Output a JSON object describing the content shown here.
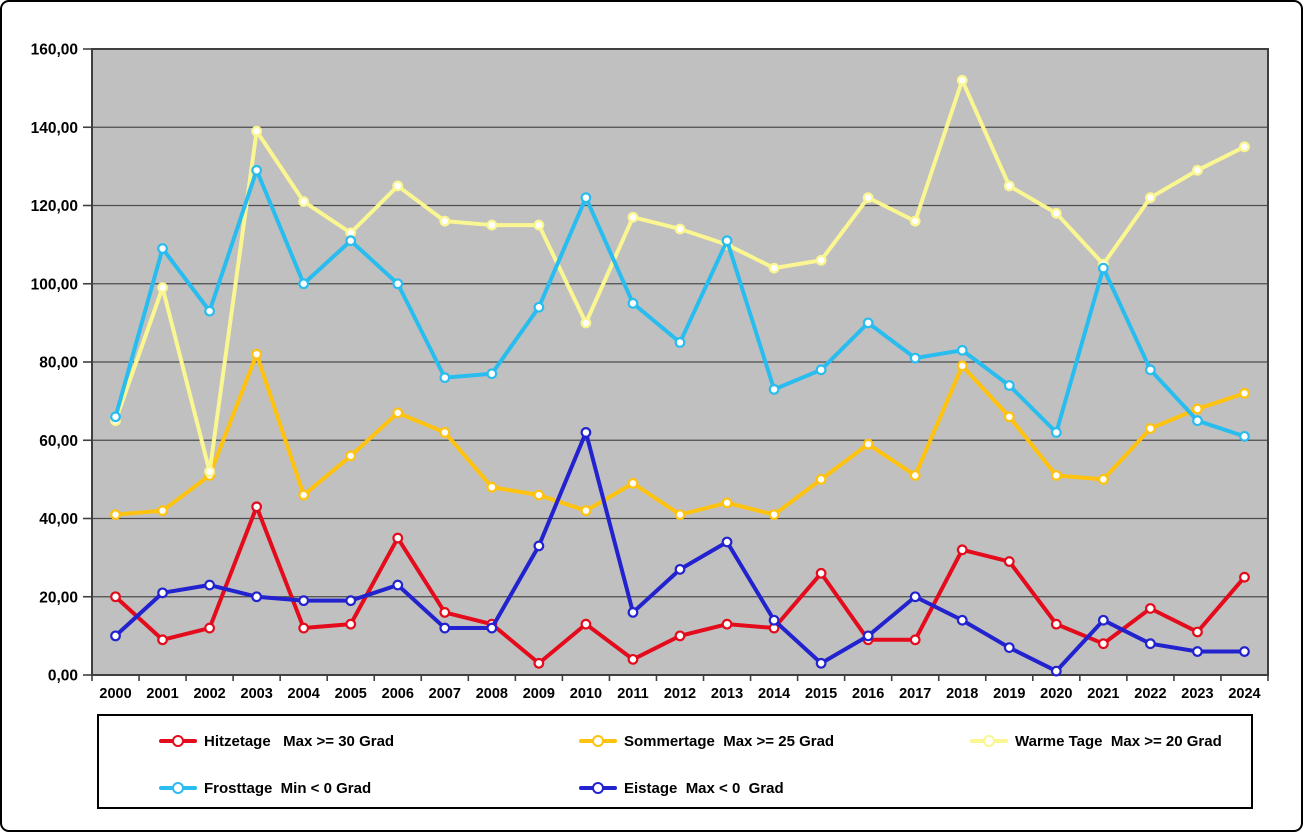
{
  "chart_data": {
    "type": "line",
    "title": "",
    "x_categories": [
      "2000",
      "2001",
      "2002",
      "2003",
      "2004",
      "2005",
      "2006",
      "2007",
      "2008",
      "2009",
      "2010",
      "2011",
      "2012",
      "2013",
      "2014",
      "2015",
      "2016",
      "2017",
      "2018",
      "2019",
      "2020",
      "2021",
      "2022",
      "2023",
      "2024"
    ],
    "y_axis": {
      "min": 0,
      "max": 160,
      "step": 20,
      "tick_labels": [
        "0,00",
        "20,00",
        "40,00",
        "60,00",
        "80,00",
        "100,00",
        "120,00",
        "140,00",
        "160,00"
      ]
    },
    "grid": true,
    "legend_position": "bottom",
    "marker": "open-circle",
    "colors": {
      "plot_background": "#C0C0C0",
      "gridline": "#4D4D4D",
      "frame": "#3F3F3F",
      "text": "#000000"
    },
    "series": [
      {
        "key": "hitzetage",
        "name": "Hitzetage   Max >= 30 Grad",
        "color": "#E30B1C",
        "values": [
          20,
          9,
          12,
          43,
          12,
          13,
          35,
          16,
          13,
          3,
          13,
          4,
          10,
          13,
          12,
          26,
          9,
          9,
          32,
          29,
          13,
          8,
          17,
          11,
          25
        ]
      },
      {
        "key": "sommertage",
        "name": "Sommertage  Max >= 25 Grad",
        "color": "#FFC20E",
        "values": [
          41,
          42,
          51,
          82,
          46,
          56,
          67,
          62,
          48,
          46,
          42,
          49,
          41,
          44,
          41,
          50,
          59,
          51,
          79,
          66,
          51,
          50,
          63,
          68,
          72
        ]
      },
      {
        "key": "warme-tage",
        "name": "Warme Tage  Max >= 20 Grad",
        "color": "#FAF691",
        "values": [
          65,
          99,
          52,
          139,
          121,
          113,
          125,
          116,
          115,
          115,
          90,
          117,
          114,
          110,
          104,
          106,
          122,
          116,
          152,
          125,
          118,
          105,
          122,
          129,
          135
        ]
      },
      {
        "key": "frosttage",
        "name": "Frosttage  Min < 0 Grad",
        "color": "#29BDEF",
        "values": [
          66,
          109,
          93,
          129,
          100,
          111,
          100,
          76,
          77,
          94,
          122,
          95,
          85,
          111,
          73,
          78,
          90,
          81,
          83,
          74,
          62,
          104,
          78,
          65,
          61
        ]
      },
      {
        "key": "eistage",
        "name": "Eistage  Max < 0  Grad",
        "color": "#2222CE",
        "values": [
          10,
          21,
          23,
          20,
          19,
          19,
          23,
          12,
          12,
          33,
          62,
          16,
          27,
          34,
          14,
          3,
          10,
          20,
          14,
          7,
          1,
          14,
          8,
          6,
          6
        ]
      }
    ]
  }
}
